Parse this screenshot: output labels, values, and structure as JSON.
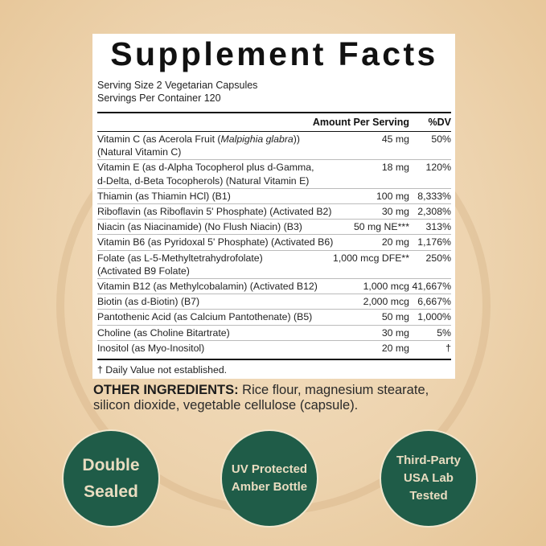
{
  "panel": {
    "title": "Supplement Facts",
    "serving_size": "Serving Size 2 Vegetarian Capsules",
    "servings_per_container": "Servings Per Container 120",
    "header": {
      "amount": "Amount Per Serving",
      "dv": "%DV"
    },
    "rows": [
      {
        "name_pre": "Vitamin C (as Acerola Fruit (",
        "name_italic": "Malpighia glabra",
        "name_post": "))",
        "name2": "(Natural Vitamin C)",
        "amount": "45 mg",
        "dv": "50%"
      },
      {
        "name_pre": "Vitamin E (as d-Alpha Tocopherol plus d-Gamma,",
        "name2": "d-Delta, d-Beta Tocopherols) (Natural Vitamin E)",
        "amount": "18 mg",
        "dv": "120%"
      },
      {
        "name_pre": "Thiamin (as Thiamin HCl) (B1)",
        "amount": "100 mg",
        "dv": "8,333%"
      },
      {
        "name_pre": "Riboflavin (as Riboflavin 5' Phosphate) (Activated B2)",
        "amount": "30 mg",
        "dv": "2,308%"
      },
      {
        "name_pre": "Niacin (as Niacinamide) (No Flush Niacin) (B3)",
        "amount": "50 mg NE***",
        "dv": "313%"
      },
      {
        "name_pre": "Vitamin B6 (as Pyridoxal 5' Phosphate) (Activated B6)",
        "amount": "20 mg",
        "dv": "1,176%"
      },
      {
        "name_pre": "Folate (as L-5-Methyltetrahydrofolate)",
        "name2": "(Activated B9 Folate)",
        "amount": "1,000 mcg DFE**",
        "dv": "250%"
      },
      {
        "name_pre": "Vitamin B12 (as Methylcobalamin) (Activated B12)",
        "amount": "1,000 mcg",
        "dv": "41,667%"
      },
      {
        "name_pre": "Biotin (as d-Biotin) (B7)",
        "amount": "2,000 mcg",
        "dv": "6,667%"
      },
      {
        "name_pre": "Pantothenic Acid (as Calcium Pantothenate) (B5)",
        "amount": "50 mg",
        "dv": "1,000%"
      },
      {
        "name_pre": "Choline (as Choline Bitartrate)",
        "amount": "30 mg",
        "dv": "5%"
      },
      {
        "name_pre": "Inositol (as Myo-Inositol)",
        "amount": "20 mg",
        "dv": "†"
      }
    ],
    "footnote": "† Daily Value not established."
  },
  "other_ingredients": {
    "label": "OTHER INGREDIENTS:",
    "text": " Rice flour, magnesium stearate, silicon dioxide, vegetable cellulose (capsule)."
  },
  "badges": [
    {
      "lines": [
        "Double",
        "Sealed"
      ]
    },
    {
      "lines": [
        "UV Protected",
        "Amber Bottle"
      ]
    },
    {
      "lines": [
        "Third-Party",
        "USA Lab",
        "Tested"
      ]
    }
  ],
  "colors": {
    "badge_green": "#1f5c48",
    "badge_text": "#e9dcc0",
    "background": "#edd3ae"
  }
}
